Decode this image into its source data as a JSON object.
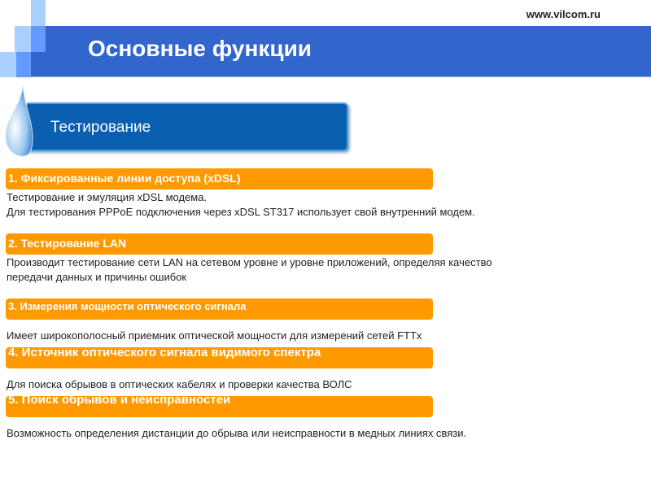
{
  "header": {
    "url": "www.vilcom.ru",
    "title": "Основные функции"
  },
  "section": {
    "label": "Тестирование"
  },
  "items": [
    {
      "heading": "1. Фиксированные линии доступа (xDSL)",
      "lines": [
        "Тестирование и эмуляция xDSL модема.",
        "Для тестирования PPPoE подключения через xDSL ST317 использует свой внутренний модем."
      ]
    },
    {
      "heading": "2. Тестирование LAN",
      "lines": [
        "Производит тестирование сети LAN на сетевом уровне и уровне приложений, определяя качество",
        "передачи данных и причины ошибок"
      ]
    },
    {
      "heading": "3. Измерения мощности оптического сигнала",
      "lines": [
        "Имеет широкополосный приемник оптической мощности для измерений сетей FTTx"
      ]
    },
    {
      "heading": "4. Источник оптического сигнала видимого спектра",
      "lines": [
        "Для поиска обрывов в оптических кабелях и проверки качества ВОЛС"
      ]
    },
    {
      "heading": "5. Поиск обрывов и неисправностей",
      "lines": [
        "Возможность определения дистанции до обрыва или неисправности в медных линиях связи."
      ]
    }
  ],
  "colors": {
    "band": "#3366cc",
    "accent": "#ff9900",
    "tab": "#0a5fb0"
  }
}
